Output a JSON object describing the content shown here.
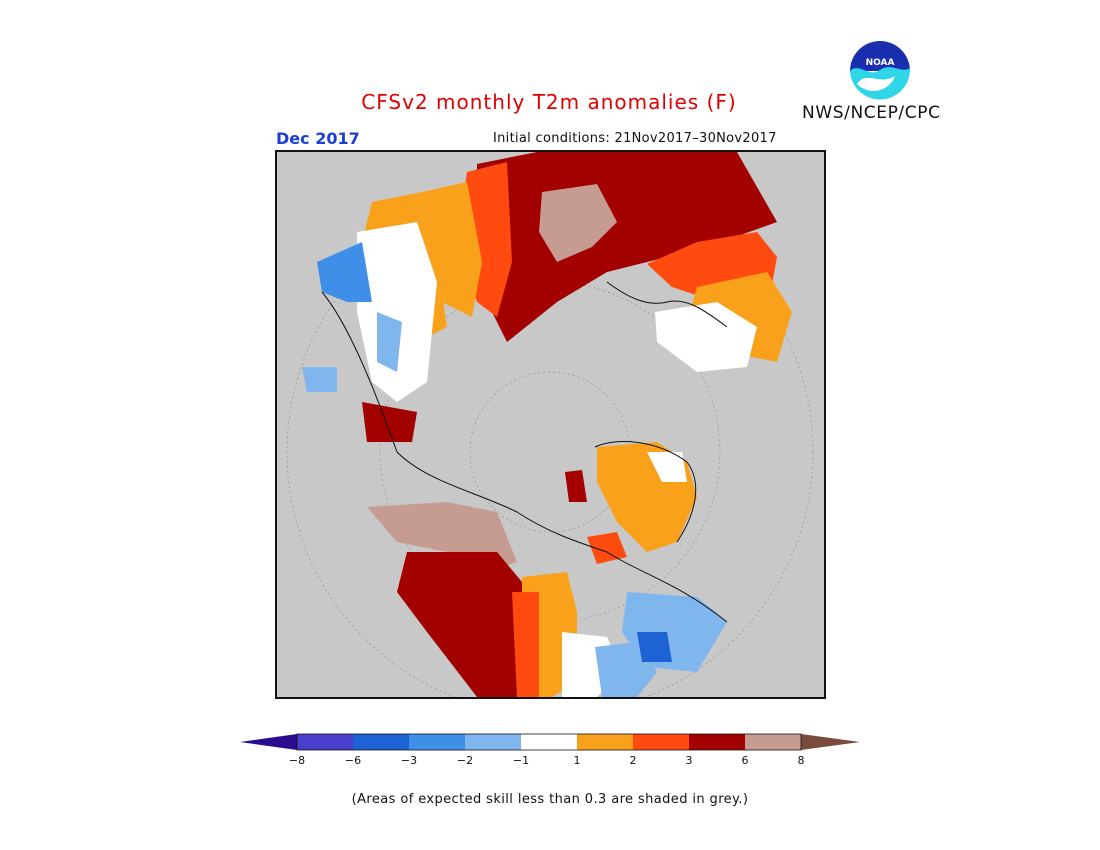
{
  "header": {
    "title": "CFSv2 monthly T2m anomalies (F)",
    "month": "Dec 2017",
    "initial_conditions": "Initial conditions: 21Nov2017–30Nov2017",
    "organization": "NWS/NCEP/CPC",
    "logo_text": "NOAA"
  },
  "legend": {
    "tick_labels": [
      "−8",
      "−6",
      "−3",
      "−2",
      "−1",
      "1",
      "2",
      "3",
      "6",
      "8"
    ],
    "colors": {
      "below_min": "#2a0d8f",
      "n8_n6": "#4a3ecc",
      "n6_n3": "#1e63d4",
      "n3_n2": "#3f8ee8",
      "n2_n1": "#7fb6ee",
      "n1_1": "#ffffff",
      "p1_p2": "#f9a11b",
      "p2_p3": "#ff4a10",
      "p3_p6": "#a30000",
      "p6_p8": "#c69b91",
      "above_max": "#7a4a3a"
    }
  },
  "map": {
    "projection": "north-polar-stereographic",
    "no_skill_color": "#c8c8c8",
    "land_outline_color": "#111111"
  },
  "footnote": "(Areas of expected skill less than 0.3 are shaded in grey.)"
}
